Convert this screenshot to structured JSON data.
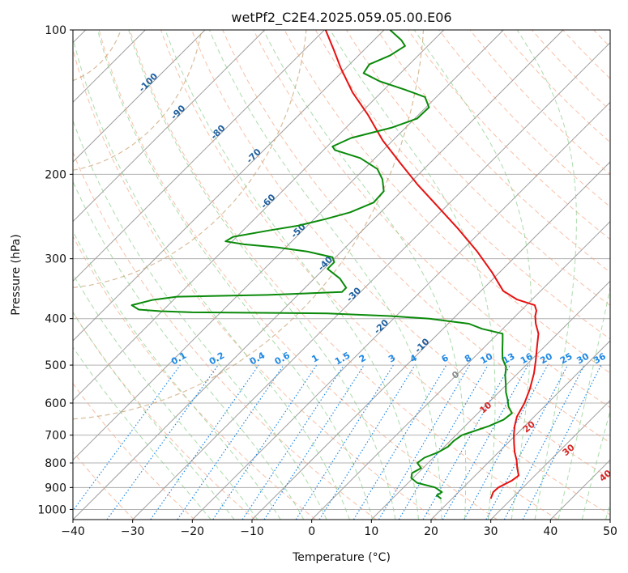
{
  "chart_data": {
    "type": "line",
    "subtype": "skew-t log-p sounding",
    "title": "wetPf2_C2E4.2025.059.05.00.E06",
    "xlabel": "Temperature (°C)",
    "ylabel": "Pressure (hPa)",
    "xlim": [
      -40,
      50
    ],
    "ylim": [
      1050,
      100
    ],
    "y_scale": "log",
    "grid": true,
    "x_ticks": [
      "−40",
      "−30",
      "−20",
      "−10",
      "0",
      "10",
      "20",
      "30",
      "40",
      "50"
    ],
    "y_ticks": [
      "100",
      "200",
      "300",
      "400",
      "500",
      "600",
      "700",
      "800",
      "900",
      "1000"
    ],
    "series": [
      {
        "color": "#e81010",
        "points": [
          [
            950,
            26.5
          ],
          [
            920,
            25.8
          ],
          [
            900,
            25.9
          ],
          [
            870,
            27.0
          ],
          [
            850,
            27.3
          ],
          [
            820,
            25.8
          ],
          [
            790,
            24.4
          ],
          [
            760,
            22.7
          ],
          [
            730,
            21.2
          ],
          [
            700,
            19.7
          ],
          [
            670,
            18.3
          ],
          [
            640,
            17.1
          ],
          [
            600,
            16.1
          ],
          [
            560,
            14.6
          ],
          [
            520,
            12.7
          ],
          [
            490,
            10.9
          ],
          [
            460,
            8.9
          ],
          [
            430,
            6.8
          ],
          [
            410,
            4.7
          ],
          [
            395,
            3.3
          ],
          [
            385,
            2.6
          ],
          [
            375,
            1.4
          ],
          [
            365,
            -2.5
          ],
          [
            350,
            -6.3
          ],
          [
            320,
            -11.3
          ],
          [
            290,
            -17.2
          ],
          [
            260,
            -24.2
          ],
          [
            230,
            -32.4
          ],
          [
            210,
            -38.5
          ],
          [
            190,
            -44.8
          ],
          [
            170,
            -51.7
          ],
          [
            150,
            -58.6
          ],
          [
            135,
            -64.8
          ],
          [
            120,
            -70.9
          ],
          [
            110,
            -75.1
          ],
          [
            100,
            -79.8
          ]
        ]
      },
      {
        "color": "#0a8a0a",
        "points": [
          [
            950,
            18.2
          ],
          [
            935,
            16.9
          ],
          [
            920,
            17.2
          ],
          [
            900,
            15.3
          ],
          [
            880,
            11.5
          ],
          [
            860,
            9.7
          ],
          [
            840,
            9.0
          ],
          [
            820,
            9.7
          ],
          [
            800,
            8.2
          ],
          [
            780,
            8.5
          ],
          [
            760,
            9.9
          ],
          [
            740,
            10.6
          ],
          [
            720,
            10.6
          ],
          [
            700,
            11.0
          ],
          [
            690,
            12.0
          ],
          [
            670,
            14.0
          ],
          [
            650,
            15.4
          ],
          [
            630,
            15.7
          ],
          [
            610,
            14.0
          ],
          [
            590,
            12.7
          ],
          [
            570,
            11.2
          ],
          [
            545,
            9.6
          ],
          [
            525,
            8.2
          ],
          [
            505,
            7.0
          ],
          [
            485,
            5.0
          ],
          [
            465,
            3.5
          ],
          [
            445,
            2.0
          ],
          [
            430,
            0.8
          ],
          [
            420,
            -3.5
          ],
          [
            410,
            -6.5
          ],
          [
            400,
            -14.0
          ],
          [
            395,
            -21.0
          ],
          [
            390,
            -32.0
          ],
          [
            388,
            -54.8
          ],
          [
            386,
            -60.3
          ],
          [
            383,
            -64.2
          ],
          [
            375,
            -66.1
          ],
          [
            366,
            -63.6
          ],
          [
            360,
            -60.0
          ],
          [
            357,
            -45.0
          ],
          [
            352,
            -33.1
          ],
          [
            345,
            -33.1
          ],
          [
            330,
            -35.7
          ],
          [
            315,
            -39.4
          ],
          [
            305,
            -39.4
          ],
          [
            298,
            -40.5
          ],
          [
            290,
            -45.6
          ],
          [
            284,
            -51.5
          ],
          [
            280,
            -57.5
          ],
          [
            276,
            -61.1
          ],
          [
            270,
            -60.6
          ],
          [
            262,
            -55.7
          ],
          [
            256,
            -51.6
          ],
          [
            248,
            -48.1
          ],
          [
            240,
            -45.1
          ],
          [
            229,
            -42.8
          ],
          [
            217,
            -43.0
          ],
          [
            205,
            -45.2
          ],
          [
            195,
            -47.8
          ],
          [
            185,
            -52.5
          ],
          [
            178,
            -58.1
          ],
          [
            175,
            -59.1
          ],
          [
            168,
            -57.4
          ],
          [
            160,
            -52.4
          ],
          [
            153,
            -49.6
          ],
          [
            145,
            -49.5
          ],
          [
            138,
            -51.9
          ],
          [
            133,
            -56.7
          ],
          [
            128,
            -62.1
          ],
          [
            123,
            -66.2
          ],
          [
            118,
            -66.7
          ],
          [
            113,
            -64.7
          ],
          [
            108,
            -63.8
          ],
          [
            105,
            -65.4
          ],
          [
            100,
            -69.0
          ]
        ]
      }
    ],
    "annotations": {
      "isotherm_labels": [
        "-100",
        "-90",
        "-80",
        "-70",
        "-60",
        "-50",
        "-40",
        "-30",
        "-20",
        "-10"
      ],
      "mixing_ratio_labels": [
        "0.1",
        "0.2",
        "0.4",
        "0.6",
        "1",
        "1.5",
        "2",
        "3",
        "4",
        "6",
        "8",
        "10",
        "13",
        "16",
        "20",
        "25",
        "30",
        "36"
      ],
      "dry_adiabat_labels": [
        "0",
        "10",
        "20",
        "30",
        "40"
      ]
    },
    "colors": {
      "temperature": "#e81010",
      "dewpoint": "#0a8a0a",
      "isotherm": "#9e9e9e",
      "isotherm_label": "#1f5f9e",
      "dry_adiabat": "#f4a582",
      "dry_adiabat_label": "#d62728",
      "moist_adiabat": "#8fcf8f",
      "mixing_ratio": "#1e88e5",
      "high_adiabat": "#c8a070"
    }
  }
}
